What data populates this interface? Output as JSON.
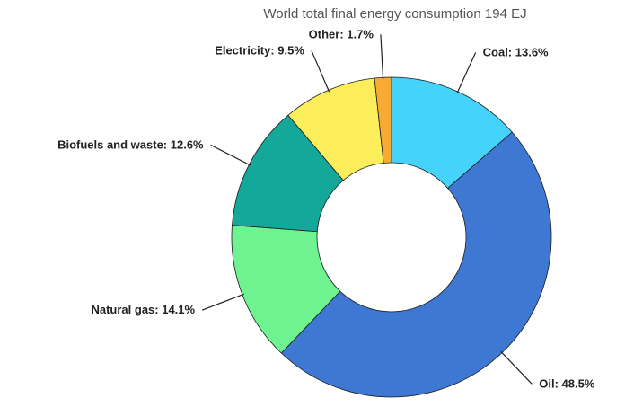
{
  "chart_data": {
    "type": "pie",
    "title": "World total final energy consumption 194 EJ",
    "slices": [
      {
        "label": "Coal: 13.6%",
        "name": "Coal",
        "value": 13.6,
        "color": "#45d3fb"
      },
      {
        "label": "Oil: 48.5%",
        "name": "Oil",
        "value": 48.5,
        "color": "#3e78d3"
      },
      {
        "label": "Natural gas: 14.1%",
        "name": "Natural gas",
        "value": 14.1,
        "color": "#6ef390"
      },
      {
        "label": "Biofuels and waste: 12.6%",
        "name": "Biofuels and waste",
        "value": 12.6,
        "color": "#13a899"
      },
      {
        "label": "Electricity: 9.5%",
        "name": "Electricity",
        "value": 9.5,
        "color": "#fbee5a"
      },
      {
        "label": "Other: 1.7%",
        "name": "Other",
        "value": 1.7,
        "color": "#f7ab34"
      }
    ],
    "donut": true,
    "legend": "none",
    "grid": false
  }
}
